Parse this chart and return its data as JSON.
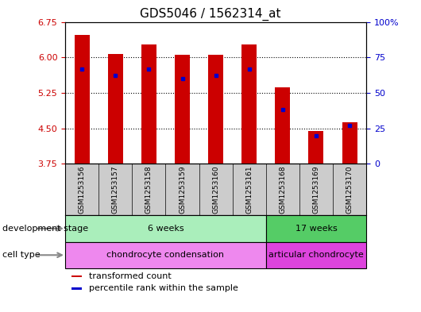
{
  "title": "GDS5046 / 1562314_at",
  "samples": [
    "GSM1253156",
    "GSM1253157",
    "GSM1253158",
    "GSM1253159",
    "GSM1253160",
    "GSM1253161",
    "GSM1253168",
    "GSM1253169",
    "GSM1253170"
  ],
  "transformed_count": [
    6.48,
    6.07,
    6.27,
    6.06,
    6.06,
    6.27,
    5.37,
    4.44,
    4.63
  ],
  "percentile_rank": [
    67,
    62,
    67,
    60,
    62,
    67,
    38,
    20,
    27
  ],
  "ylim_left": [
    3.75,
    6.75
  ],
  "ylim_right": [
    0,
    100
  ],
  "yticks_left": [
    3.75,
    4.5,
    5.25,
    6.0,
    6.75
  ],
  "yticks_right": [
    0,
    25,
    50,
    75,
    100
  ],
  "bar_color": "#cc0000",
  "percentile_color": "#0000cc",
  "bar_bottom": 3.75,
  "development_stage_labels": [
    {
      "label": "6 weeks",
      "start": 0,
      "end": 6,
      "color": "#aaeebb"
    },
    {
      "label": "17 weeks",
      "start": 6,
      "end": 9,
      "color": "#55cc66"
    }
  ],
  "cell_type_labels": [
    {
      "label": "chondrocyte condensation",
      "start": 0,
      "end": 6,
      "color": "#ee88ee"
    },
    {
      "label": "articular chondrocyte",
      "start": 6,
      "end": 9,
      "color": "#dd44dd"
    }
  ],
  "row_label_dev": "development stage",
  "row_label_cell": "cell type",
  "legend_items": [
    {
      "color": "#cc0000",
      "label": "transformed count"
    },
    {
      "color": "#0000cc",
      "label": "percentile rank within the sample"
    }
  ],
  "background_color": "#ffffff",
  "panel_bg": "#ffffff",
  "tick_label_color_left": "#cc0000",
  "tick_label_color_right": "#0000cc",
  "grid_color": "#000000",
  "xticklabel_bg": "#cccccc",
  "bar_width": 0.45
}
